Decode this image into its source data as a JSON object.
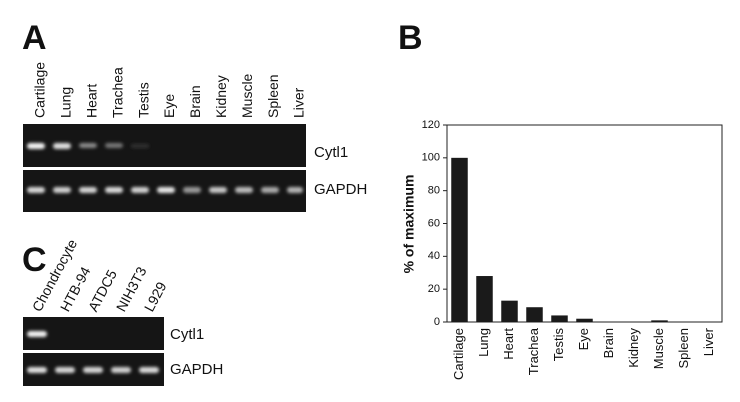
{
  "panel_a": {
    "label": "A",
    "lanes": [
      "Cartilage",
      "Lung",
      "Heart",
      "Trachea",
      "Testis",
      "Eye",
      "Brain",
      "Kidney",
      "Muscle",
      "Spleen",
      "Liver"
    ],
    "genes": [
      "Cytl1",
      "GAPDH"
    ]
  },
  "panel_c": {
    "label": "C",
    "lanes": [
      "Chondrocyte",
      "HTB-94",
      "ATDC5",
      "NIH3T3",
      "L929"
    ],
    "genes": [
      "Cytl1",
      "GAPDH"
    ]
  },
  "chart_data": {
    "type": "bar",
    "label": "B",
    "y_label": "% of maximum",
    "categories": [
      "Cartilage",
      "Lung",
      "Heart",
      "Trachea",
      "Testis",
      "Eye",
      "Brain",
      "Kidney",
      "Muscle",
      "Spleen",
      "Liver"
    ],
    "values": [
      100,
      28,
      13,
      9,
      4,
      2,
      0,
      0,
      1,
      0,
      0
    ],
    "color": "#1a1a1a",
    "ylim": [
      0,
      120
    ],
    "yticks": [
      0,
      20,
      40,
      60,
      80,
      100,
      120
    ],
    "grid": false
  }
}
